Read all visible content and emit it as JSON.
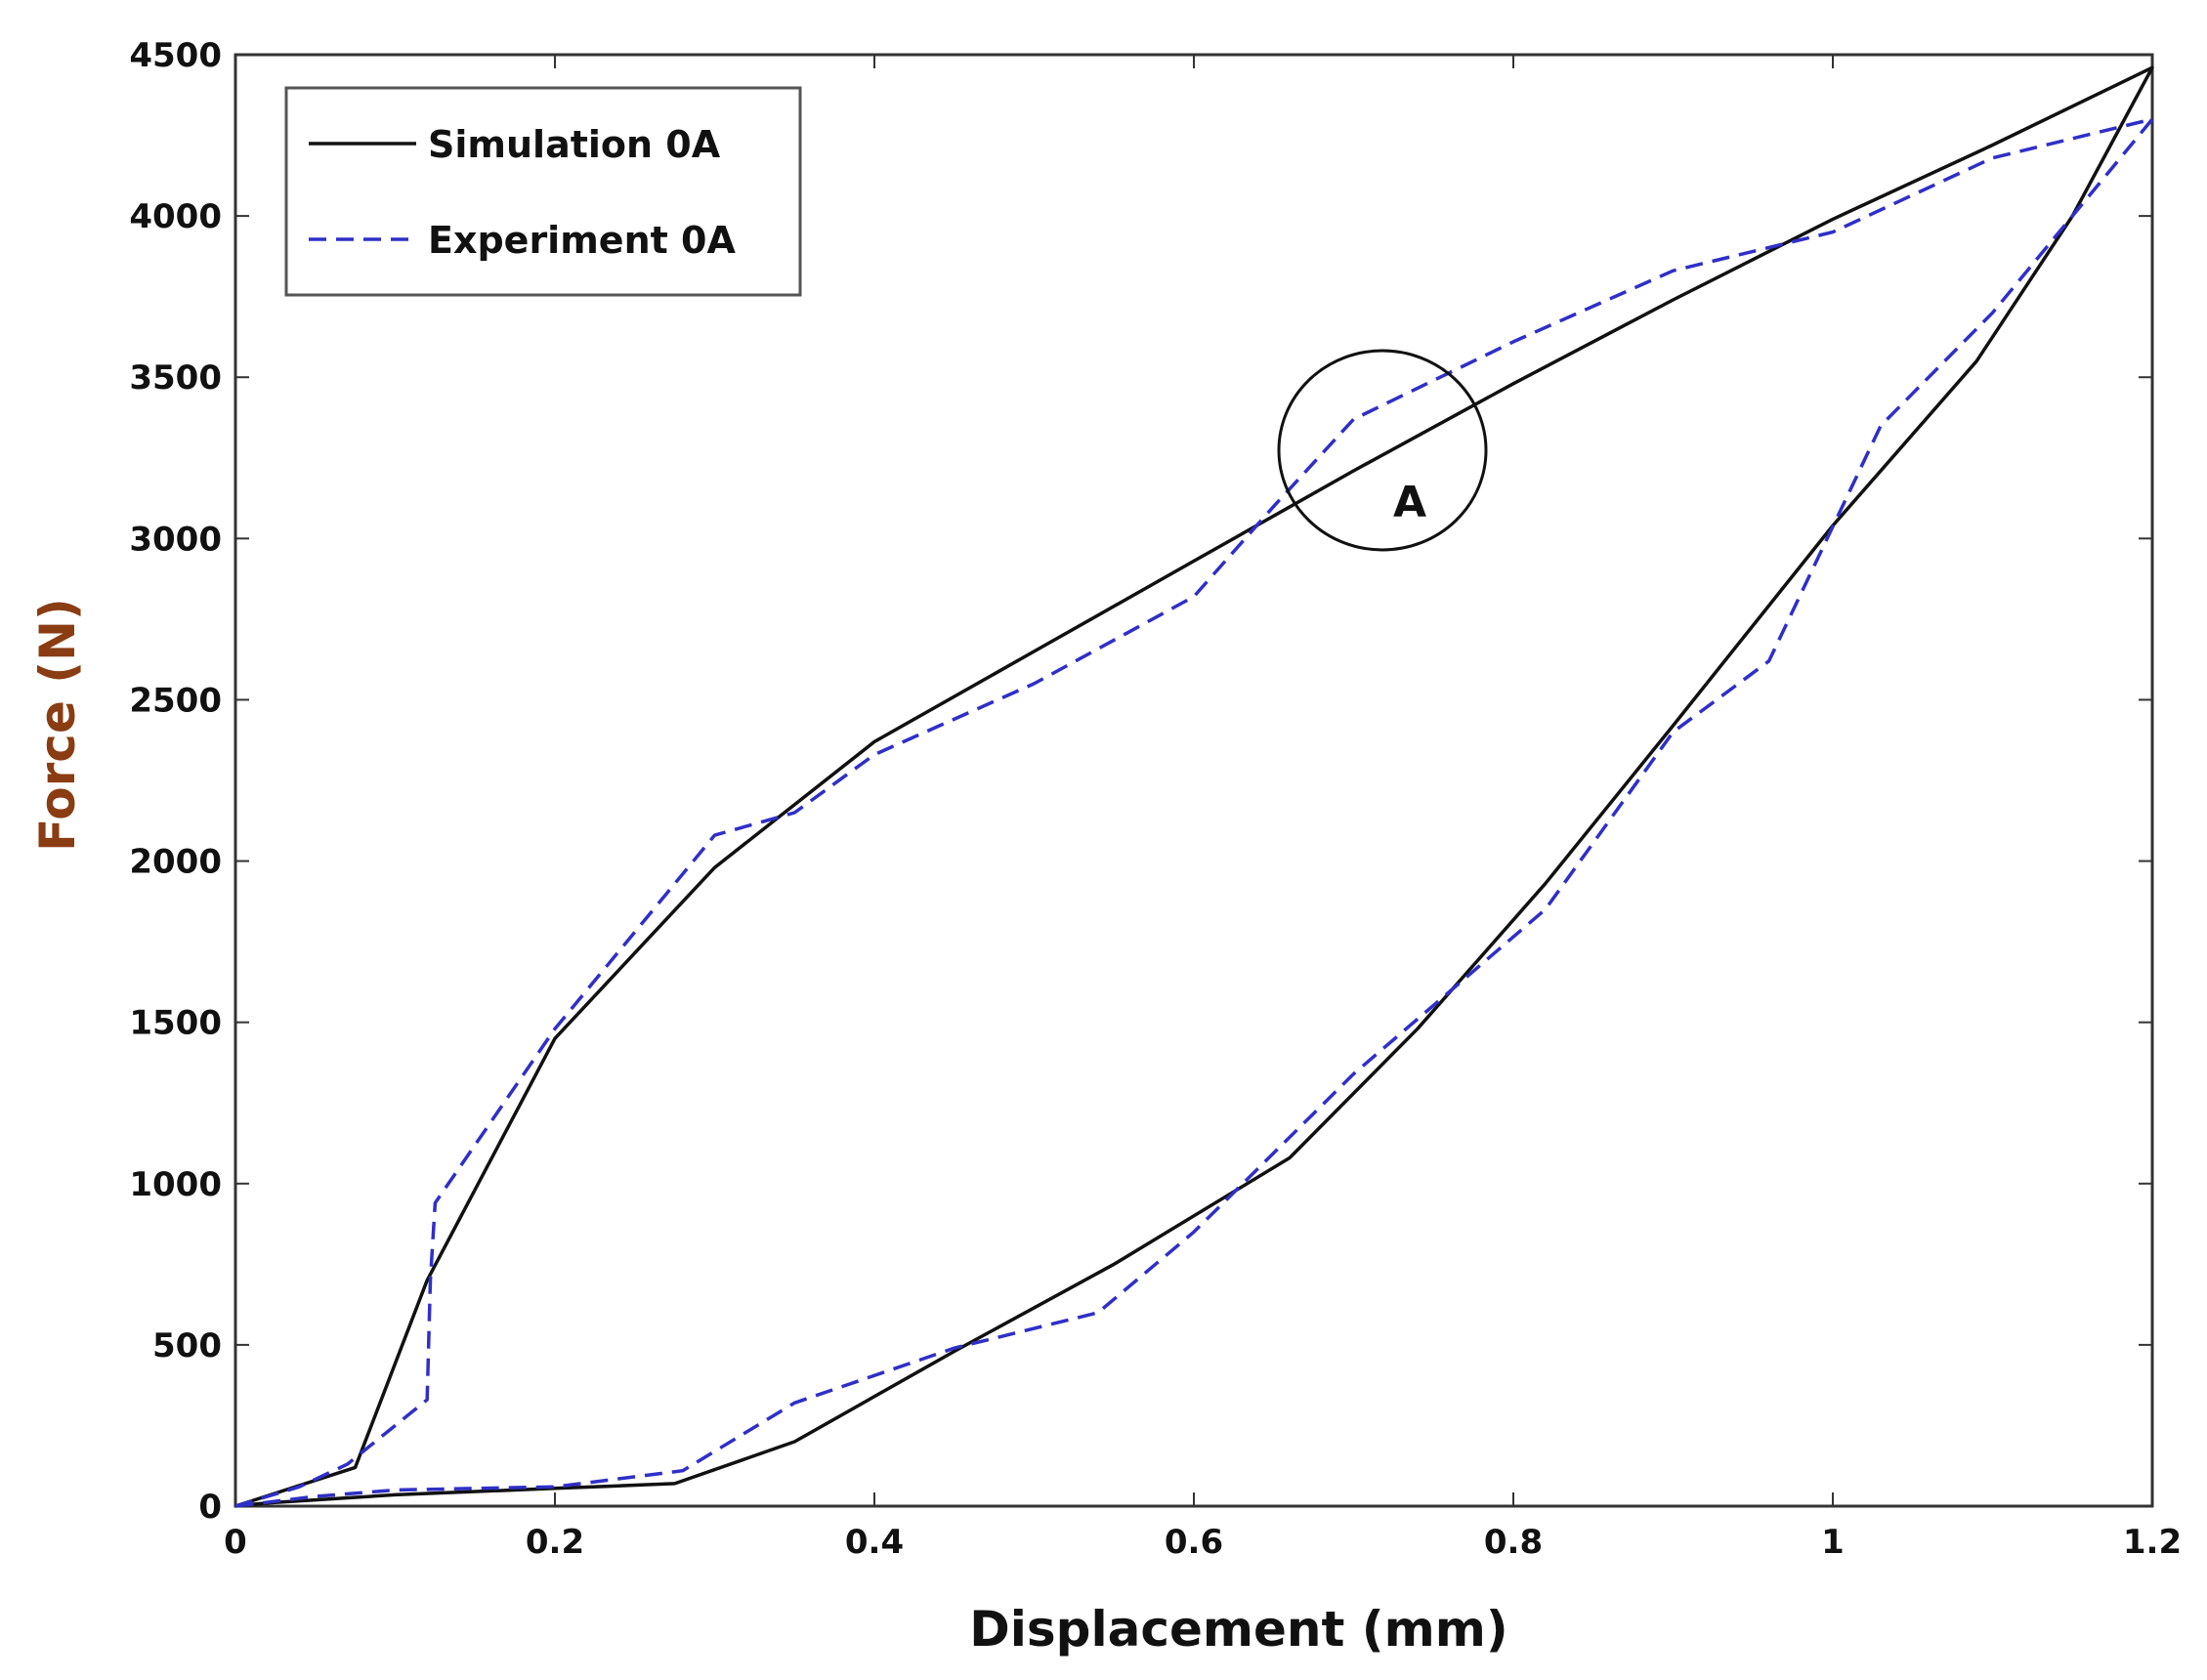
{
  "chart_data": {
    "type": "line",
    "xlabel": "Displacement (mm)",
    "ylabel": "Force (N)",
    "xlim": [
      0,
      1.2
    ],
    "ylim": [
      0,
      4500
    ],
    "xticks": [
      0,
      0.2,
      0.4,
      0.6,
      0.8,
      1,
      1.2
    ],
    "xtick_labels": [
      "0",
      "0.2",
      "0.4",
      "0.6",
      "0.8",
      "1",
      "1.2"
    ],
    "yticks": [
      0,
      500,
      1000,
      1500,
      2000,
      2500,
      3000,
      3500,
      4000,
      4500
    ],
    "ytick_labels": [
      "0",
      "500",
      "1000",
      "1500",
      "2000",
      "2500",
      "3000",
      "3500",
      "4000",
      "4500"
    ],
    "grid": false,
    "legend_position": "top-left",
    "series": [
      {
        "name": "Simulation 0A",
        "color": "#111111",
        "style": "solid",
        "x": [
          0,
          0.075,
          0.12,
          0.2,
          0.3,
          0.4,
          0.5,
          0.6,
          0.7,
          0.8,
          0.9,
          1.0,
          1.1,
          1.2,
          1.15,
          1.09,
          1.0,
          0.9,
          0.82,
          0.74,
          0.66,
          0.55,
          0.45,
          0.35,
          0.275,
          0.2,
          0.1,
          0.02,
          0
        ],
        "y": [
          0,
          120,
          700,
          1450,
          1980,
          2370,
          2650,
          2930,
          3210,
          3480,
          3740,
          3990,
          4220,
          4460,
          4000,
          3550,
          3040,
          2420,
          1930,
          1480,
          1080,
          750,
          480,
          200,
          70,
          55,
          35,
          10,
          0
        ]
      },
      {
        "name": "Experiment 0A",
        "color": "#2f2fc8",
        "style": "dashed",
        "x": [
          0,
          0.04,
          0.07,
          0.12,
          0.122,
          0.125,
          0.2,
          0.27,
          0.3,
          0.35,
          0.4,
          0.5,
          0.6,
          0.65,
          0.7,
          0.8,
          0.9,
          1.0,
          1.1,
          1.2,
          1.19,
          1.15,
          1.1,
          1.03,
          0.96,
          0.9,
          0.82,
          0.7,
          0.6,
          0.54,
          0.45,
          0.35,
          0.28,
          0.2,
          0.1,
          0.05,
          0
        ],
        "y": [
          0,
          60,
          130,
          330,
          700,
          940,
          1480,
          1900,
          2080,
          2150,
          2330,
          2550,
          2820,
          3100,
          3370,
          3610,
          3830,
          3950,
          4180,
          4300,
          4240,
          4000,
          3700,
          3350,
          2620,
          2400,
          1850,
          1340,
          850,
          600,
          490,
          320,
          110,
          60,
          50,
          30,
          0
        ]
      }
    ],
    "annotations": [
      {
        "label": "A",
        "x": 0.72,
        "y": 3280
      }
    ]
  }
}
